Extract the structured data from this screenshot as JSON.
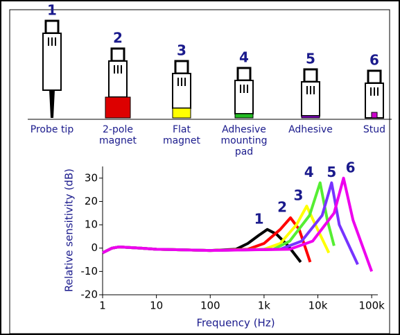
{
  "mounts": [
    {
      "number": "1",
      "label": [
        "Probe tip"
      ]
    },
    {
      "number": "2",
      "label": [
        "2-pole",
        "magnet"
      ]
    },
    {
      "number": "3",
      "label": [
        "Flat",
        "magnet"
      ]
    },
    {
      "number": "4",
      "label": [
        "Adhesive",
        "mounting",
        "pad"
      ]
    },
    {
      "number": "5",
      "label": [
        "Adhesive"
      ]
    },
    {
      "number": "6",
      "label": [
        "Stud"
      ]
    }
  ],
  "chart_data": {
    "type": "line",
    "x_label": "Frequency (Hz)",
    "y_label": "Relative sensitivity (dB)",
    "log_x": true,
    "xlim": [
      1,
      130000
    ],
    "ylim": [
      -20,
      35
    ],
    "xticks": [
      1,
      10,
      100,
      {
        "value": 1000,
        "label": "1k"
      },
      {
        "value": 10000,
        "label": "10k"
      },
      {
        "value": 100000,
        "label": "100k"
      }
    ],
    "yticks": [
      -20,
      -10,
      0,
      10,
      20,
      30
    ],
    "series": [
      {
        "name": "1",
        "color": "#000000",
        "x": [
          1,
          1.5,
          2,
          5,
          10,
          100,
          300,
          500,
          800,
          1150,
          1700,
          2800,
          4800
        ],
        "values": [
          -2,
          0,
          0.5,
          0,
          -0.5,
          -1,
          -0.5,
          2,
          5.5,
          8,
          6,
          1,
          -6
        ]
      },
      {
        "name": "2",
        "color": "#ff0000",
        "x": [
          1,
          1.5,
          2,
          5,
          10,
          100,
          500,
          1000,
          2000,
          3100,
          4500,
          7200
        ],
        "values": [
          -2,
          0,
          0.5,
          0,
          -0.5,
          -1,
          -0.5,
          2,
          8,
          13,
          8,
          -6
        ]
      },
      {
        "name": "3",
        "color": "#ffff00",
        "x": [
          1,
          1.5,
          2,
          5,
          10,
          100,
          1000,
          2000,
          4000,
          6200,
          9000,
          16000
        ],
        "values": [
          -2,
          0,
          0.5,
          0,
          -0.5,
          -1,
          -0.5,
          2,
          10,
          18,
          10,
          -2
        ]
      },
      {
        "name": "4",
        "color": "#55ee33",
        "x": [
          1,
          1.5,
          2,
          5,
          10,
          100,
          1500,
          3000,
          7000,
          11000,
          15000,
          20000
        ],
        "values": [
          -2,
          0,
          0.5,
          0,
          -0.5,
          -1,
          -0.5,
          3,
          14,
          28,
          12,
          1
        ]
      },
      {
        "name": "5",
        "color": "#7733ff",
        "x": [
          1,
          1.5,
          2,
          5,
          10,
          100,
          2000,
          5000,
          12000,
          18000,
          25000,
          55000
        ],
        "values": [
          -2,
          0,
          0.5,
          0,
          -0.5,
          -1,
          -0.5,
          3,
          14,
          28,
          10,
          -7
        ]
      },
      {
        "name": "6",
        "color": "#ee00ee",
        "x": [
          1,
          1.5,
          2,
          5,
          10,
          100,
          3000,
          8000,
          20000,
          30000,
          45000,
          100000
        ],
        "values": [
          -2,
          0,
          0.5,
          0,
          -0.5,
          -1,
          -0.5,
          3,
          15,
          30,
          12,
          -10
        ]
      }
    ]
  }
}
